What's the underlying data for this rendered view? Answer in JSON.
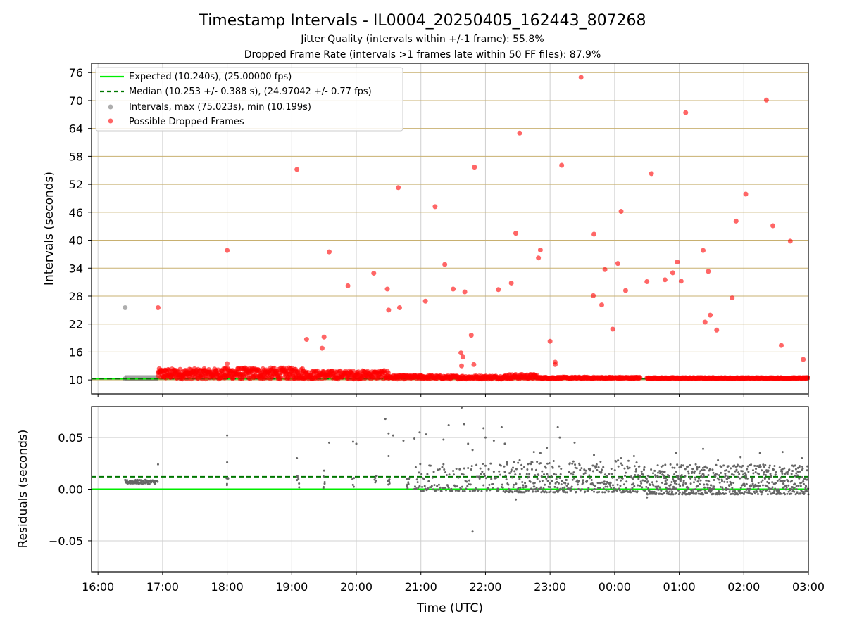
{
  "header": {
    "title": "Timestamp Intervals - IL0004_20250405_162443_807268",
    "subtitle1": "Jitter Quality (intervals within +/-1 frame): 55.8%",
    "subtitle2": "Dropped Frame Rate (intervals >1 frames late within 50 FF files): 87.9%"
  },
  "colors": {
    "expected": "#00ee00",
    "median": "#007700",
    "intervals": "#8c8c8c",
    "dropped": "#ff0000",
    "hlines": "#c8b070",
    "grid": "#d0d0d0",
    "residuals": "#666666"
  },
  "chart_data": [
    {
      "type": "scatter",
      "name": "intervals",
      "ylabel": "Intervals (seconds)",
      "xlabel": "",
      "xlim_hours": [
        15.9,
        27.0
      ],
      "ylim": [
        7.0,
        78.0
      ],
      "yticks": [
        10,
        16,
        22,
        28,
        34,
        40,
        46,
        52,
        58,
        64,
        70,
        76
      ],
      "legend_position": "upper-left",
      "legend": [
        {
          "label": "Expected (10.240s), (25.00000 fps)",
          "style": "line"
        },
        {
          "label": "Median (10.253 +/- 0.388 s), (24.97042 +/- 0.77 fps)",
          "style": "dashed"
        },
        {
          "label": "Intervals, max (75.023s), min (10.199s)",
          "style": "dot-gray"
        },
        {
          "label": "Possible Dropped Frames",
          "style": "dot-red"
        }
      ],
      "expected_value": 10.24,
      "median_value": 10.253,
      "intervals_gray": [
        [
          16.42,
          25.5
        ]
      ],
      "dropped_frames": [
        [
          16.93,
          25.5
        ],
        [
          18.0,
          37.8
        ],
        [
          18.0,
          13.5
        ],
        [
          19.08,
          55.2
        ],
        [
          19.23,
          18.7
        ],
        [
          19.5,
          19.2
        ],
        [
          19.47,
          16.8
        ],
        [
          19.58,
          37.5
        ],
        [
          19.87,
          30.2
        ],
        [
          20.27,
          32.9
        ],
        [
          20.48,
          29.5
        ],
        [
          20.5,
          25.0
        ],
        [
          20.65,
          51.3
        ],
        [
          20.67,
          25.5
        ],
        [
          21.07,
          26.9
        ],
        [
          21.22,
          47.2
        ],
        [
          21.37,
          34.8
        ],
        [
          21.5,
          29.5
        ],
        [
          21.62,
          15.8
        ],
        [
          21.65,
          14.9
        ],
        [
          21.63,
          13.0
        ],
        [
          21.68,
          28.9
        ],
        [
          21.78,
          19.6
        ],
        [
          21.82,
          13.3
        ],
        [
          21.83,
          55.7
        ],
        [
          22.2,
          29.4
        ],
        [
          22.4,
          30.8
        ],
        [
          22.47,
          41.5
        ],
        [
          22.53,
          63.0
        ],
        [
          22.82,
          36.2
        ],
        [
          22.85,
          37.9
        ],
        [
          23.0,
          18.3
        ],
        [
          23.08,
          13.8
        ],
        [
          23.08,
          13.3
        ],
        [
          23.18,
          56.1
        ],
        [
          23.48,
          75.0
        ],
        [
          23.67,
          28.1
        ],
        [
          23.68,
          41.3
        ],
        [
          23.8,
          26.1
        ],
        [
          23.85,
          33.7
        ],
        [
          23.97,
          20.9
        ],
        [
          24.05,
          35.0
        ],
        [
          24.1,
          46.2
        ],
        [
          24.17,
          29.2
        ],
        [
          24.5,
          31.1
        ],
        [
          24.57,
          54.3
        ],
        [
          24.78,
          31.5
        ],
        [
          24.9,
          33.0
        ],
        [
          24.97,
          35.3
        ],
        [
          25.03,
          31.2
        ],
        [
          25.1,
          67.4
        ],
        [
          25.37,
          37.8
        ],
        [
          25.4,
          22.4
        ],
        [
          25.45,
          33.3
        ],
        [
          25.48,
          23.9
        ],
        [
          25.58,
          20.7
        ],
        [
          25.82,
          27.6
        ],
        [
          25.88,
          44.1
        ],
        [
          26.03,
          49.9
        ],
        [
          26.35,
          70.1
        ],
        [
          26.45,
          43.1
        ],
        [
          26.58,
          17.4
        ],
        [
          26.72,
          39.8
        ],
        [
          26.92,
          14.4
        ]
      ],
      "band_segments_hours": [
        [
          16.93,
          21.2
        ],
        [
          21.2,
          27.0
        ]
      ],
      "gray_band_hours": [
        16.42,
        16.93
      ]
    },
    {
      "type": "scatter",
      "name": "residuals",
      "ylabel": "Residuals (seconds)",
      "xlabel": "Time (UTC)",
      "xlim_hours": [
        15.9,
        27.0
      ],
      "ylim": [
        -0.08,
        0.08
      ],
      "yticks": [
        -0.05,
        0.0,
        0.05
      ],
      "ytick_labels": [
        "−0.05",
        "0.00",
        "0.05"
      ],
      "xticks_hours": [
        16,
        17,
        18,
        19,
        20,
        21,
        22,
        23,
        24,
        25,
        26,
        27
      ],
      "xtick_labels": [
        "16:00",
        "17:00",
        "18:00",
        "19:00",
        "20:00",
        "21:00",
        "22:00",
        "23:00",
        "00:00",
        "01:00",
        "02:00",
        "03:00"
      ],
      "expected_residual": 0.0,
      "median_residual": 0.012,
      "outliers": [
        [
          16.93,
          0.024
        ],
        [
          18.0,
          0.052
        ],
        [
          18.0,
          0.026
        ],
        [
          19.08,
          0.03
        ],
        [
          19.5,
          0.018
        ],
        [
          19.58,
          0.045
        ],
        [
          19.95,
          0.046
        ],
        [
          20.0,
          0.044
        ],
        [
          20.45,
          0.068
        ],
        [
          20.5,
          0.054
        ],
        [
          20.5,
          0.032
        ],
        [
          20.57,
          0.052
        ],
        [
          20.73,
          0.047
        ],
        [
          20.9,
          0.049
        ],
        [
          20.98,
          0.055
        ],
        [
          21.08,
          0.053
        ],
        [
          21.35,
          0.048
        ],
        [
          21.43,
          0.062
        ],
        [
          21.63,
          0.079
        ],
        [
          21.67,
          0.063
        ],
        [
          21.73,
          0.044
        ],
        [
          21.8,
          0.038
        ],
        [
          21.8,
          -0.041
        ],
        [
          21.97,
          0.059
        ],
        [
          22.0,
          0.05
        ],
        [
          22.13,
          0.047
        ],
        [
          22.25,
          0.06
        ],
        [
          22.3,
          0.044
        ],
        [
          22.47,
          -0.01
        ],
        [
          22.53,
          0.028
        ],
        [
          22.75,
          0.036
        ],
        [
          22.85,
          0.035
        ],
        [
          22.95,
          0.04
        ],
        [
          23.12,
          0.06
        ],
        [
          23.15,
          0.05
        ],
        [
          23.38,
          0.045
        ],
        [
          23.68,
          0.033
        ],
        [
          24.1,
          0.03
        ],
        [
          24.3,
          0.032
        ],
        [
          24.5,
          -0.008
        ],
        [
          24.95,
          0.035
        ],
        [
          25.1,
          -0.005
        ],
        [
          25.37,
          0.039
        ],
        [
          25.6,
          0.028
        ],
        [
          25.95,
          0.031
        ],
        [
          26.25,
          0.035
        ],
        [
          26.6,
          0.036
        ],
        [
          26.9,
          0.03
        ],
        [
          27.0,
          -0.005
        ]
      ],
      "flat_band": {
        "hours": [
          16.42,
          16.93
        ],
        "value": 0.007
      }
    }
  ]
}
